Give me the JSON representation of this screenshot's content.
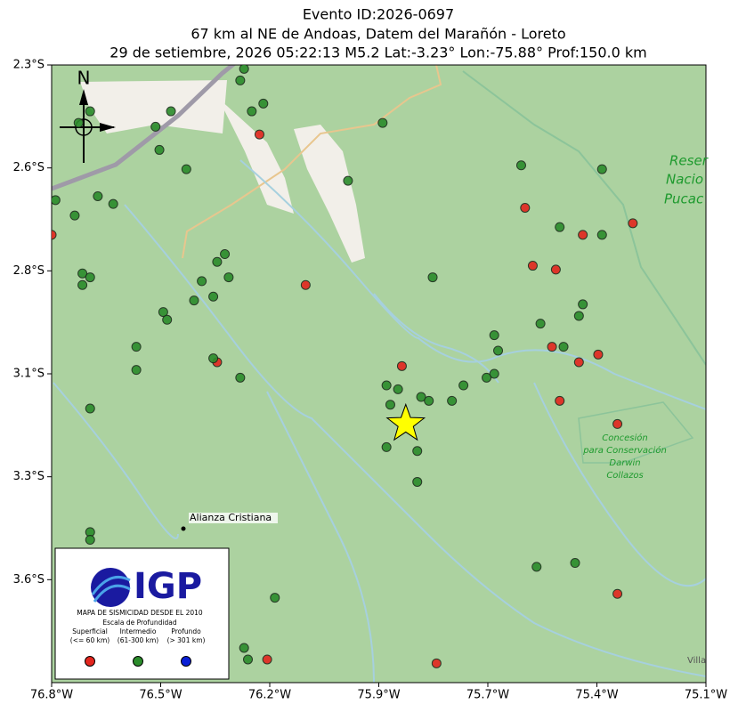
{
  "chart_data": {
    "type": "scatter",
    "title": [
      "Evento ID:2026-0697",
      "67 km al NE de Andoas, Datem del Marañón - Loreto",
      "29 de setiembre, 2026 05:22:13 M5.2 Lat:-3.23° Lon:-75.88° Prof:150.0 km"
    ],
    "xlim": [
      -76.8,
      -75.1
    ],
    "ylim": [
      -3.9,
      -2.3
    ],
    "xticks": [
      {
        "value": -76.8,
        "label": "76.8°W"
      },
      {
        "value": -76.5167,
        "label": "76.5°W"
      },
      {
        "value": -76.2333,
        "label": "76.2°W"
      },
      {
        "value": -75.95,
        "label": "75.9°W"
      },
      {
        "value": -75.6667,
        "label": "75.7°W"
      },
      {
        "value": -75.3833,
        "label": "75.4°W"
      },
      {
        "value": -75.1,
        "label": "75.1°W"
      }
    ],
    "yticks": [
      {
        "value": -2.3,
        "label": "2.3°S"
      },
      {
        "value": -2.5667,
        "label": "2.6°S"
      },
      {
        "value": -2.8333,
        "label": "2.8°S"
      },
      {
        "value": -3.1,
        "label": "3.1°S"
      },
      {
        "value": -3.3667,
        "label": "3.3°S"
      },
      {
        "value": -3.6333,
        "label": "3.6°S"
      }
    ],
    "background_color": "#acd2a0",
    "epicenter": {
      "lon": -75.88,
      "lat": -3.23,
      "color": "#ffff00"
    },
    "north_label": "N",
    "legend": {
      "logo": "IGP",
      "heading": "MAPA DE SISMICIDAD DESDE EL 2010",
      "subheading": "Escala de Profundidad"
    },
    "map_labels": [
      "Alianza Cristiana",
      "Reser",
      "Nacio",
      "Pucac",
      "Concesión",
      "para Conservación",
      "Darwin",
      "Collazos",
      "Villa"
    ],
    "series": [
      {
        "name": "Superficial",
        "range": "(<= 60 km)",
        "color": "#e3261e",
        "x": [
          -76.26,
          -76.8,
          -76.14,
          -76.37,
          -75.89,
          -75.57,
          -75.55,
          -75.49,
          -75.42,
          -75.29,
          -75.5,
          -75.43,
          -75.38,
          -75.48,
          -75.33,
          -76.24,
          -75.8,
          -75.33
        ],
        "y": [
          -2.48,
          -2.74,
          -2.87,
          -3.07,
          -3.08,
          -2.67,
          -2.82,
          -2.83,
          -2.74,
          -2.71,
          -3.03,
          -3.07,
          -3.05,
          -3.17,
          -3.23,
          -3.84,
          -3.85,
          -3.67
        ]
      },
      {
        "name": "Intermedio",
        "range": "(61-300 km)",
        "color": "#2b8c2b",
        "x": [
          -76.73,
          -76.7,
          -76.49,
          -76.53,
          -76.52,
          -76.45,
          -76.31,
          -76.3,
          -76.25,
          -76.28,
          -75.94,
          -76.03,
          -76.68,
          -76.64,
          -76.79,
          -76.74,
          -76.72,
          -76.7,
          -76.72,
          -76.35,
          -76.37,
          -76.34,
          -76.41,
          -76.38,
          -76.43,
          -76.51,
          -76.5,
          -76.58,
          -76.38,
          -76.58,
          -76.31,
          -76.7,
          -75.93,
          -75.9,
          -75.92,
          -75.84,
          -75.82,
          -75.76,
          -75.73,
          -75.67,
          -75.65,
          -75.65,
          -75.64,
          -75.81,
          -75.93,
          -75.85,
          -75.85,
          -75.58,
          -75.48,
          -75.37,
          -75.37,
          -75.53,
          -75.42,
          -75.43,
          -75.47,
          -76.7,
          -76.7,
          -76.22,
          -76.3,
          -76.29,
          -75.54,
          -75.44
        ],
        "y": [
          -2.45,
          -2.42,
          -2.42,
          -2.46,
          -2.52,
          -2.57,
          -2.34,
          -2.31,
          -2.4,
          -2.42,
          -2.45,
          -2.6,
          -2.64,
          -2.66,
          -2.65,
          -2.69,
          -2.84,
          -2.85,
          -2.87,
          -2.79,
          -2.81,
          -2.85,
          -2.86,
          -2.9,
          -2.91,
          -2.94,
          -2.96,
          -3.03,
          -3.06,
          -3.09,
          -3.11,
          -3.19,
          -3.13,
          -3.14,
          -3.18,
          -3.16,
          -3.17,
          -3.17,
          -3.13,
          -3.11,
          -3.1,
          -3.0,
          -3.04,
          -2.85,
          -3.29,
          -3.3,
          -3.38,
          -2.56,
          -2.72,
          -2.57,
          -2.74,
          -2.97,
          -2.92,
          -2.95,
          -3.03,
          -3.51,
          -3.53,
          -3.68,
          -3.81,
          -3.84,
          -3.6,
          -3.59
        ]
      },
      {
        "name": "Profundo",
        "range": "(> 301 km)",
        "color": "#0a1fd6",
        "x": [],
        "y": []
      }
    ]
  }
}
